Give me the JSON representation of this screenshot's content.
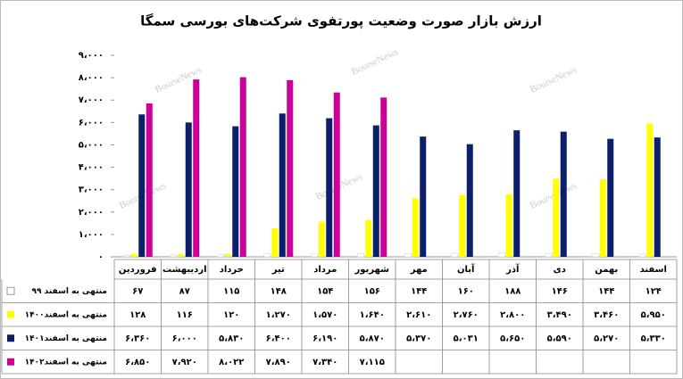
{
  "chart_data": {
    "type": "bar",
    "title": "ارزش بازار صورت وضعیت پورتفوی شرکت‌های بورسی سمگا",
    "watermark": "BourseNews",
    "categories": [
      "فروردین",
      "اردیبهشت",
      "خرداد",
      "تیر",
      "مرداد",
      "شهریور",
      "مهر",
      "آبان",
      "آذر",
      "دی",
      "بهمن",
      "اسفند"
    ],
    "series": [
      {
        "name": "منتهی به اسفند ۹۹",
        "color": "#ffffff",
        "values": [
          67,
          87,
          115,
          148,
          154,
          156,
          144,
          160,
          188,
          146,
          144,
          124
        ],
        "value_labels": [
          "۶۷",
          "۸۷",
          "۱۱۵",
          "۱۴۸",
          "۱۵۴",
          "۱۵۶",
          "۱۴۴",
          "۱۶۰",
          "۱۸۸",
          "۱۴۶",
          "۱۴۴",
          "۱۲۴"
        ]
      },
      {
        "name": "منتهی به اسفند۱۴۰۰",
        "color": "#ffff00",
        "values": [
          128,
          116,
          120,
          1270,
          1570,
          1640,
          2610,
          2760,
          2800,
          3490,
          3460,
          5950
        ],
        "value_labels": [
          "۱۲۸",
          "۱۱۶",
          "۱۲۰",
          "۱،۲۷۰",
          "۱،۵۷۰",
          "۱،۶۴۰",
          "۲،۶۱۰",
          "۲،۷۶۰",
          "۲،۸۰۰",
          "۳،۴۹۰",
          "۳،۴۶۰",
          "۵،۹۵۰"
        ]
      },
      {
        "name": "منتهی به اسفند۱۴۰۱",
        "color": "#0b1f6b",
        "values": [
          6360,
          6000,
          5830,
          6400,
          6190,
          5870,
          5370,
          5031,
          5650,
          5590,
          5270,
          5330
        ],
        "value_labels": [
          "۶،۳۶۰",
          "۶،۰۰۰",
          "۵،۸۳۰",
          "۶،۴۰۰",
          "۶،۱۹۰",
          "۵،۸۷۰",
          "۵،۳۷۰",
          "۵،۰۳۱",
          "۵،۶۵۰",
          "۵،۵۹۰",
          "۵،۲۷۰",
          "۵،۳۳۰"
        ]
      },
      {
        "name": "منتهی به اسفند۱۴۰۲",
        "color": "#cc0099",
        "values": [
          6850,
          7920,
          8022,
          7890,
          7340,
          7115,
          null,
          null,
          null,
          null,
          null,
          null
        ],
        "value_labels": [
          "۶،۸۵۰",
          "۷،۹۲۰",
          "۸،۰۲۲",
          "۷،۸۹۰",
          "۷،۳۴۰",
          "۷،۱۱۵",
          null,
          null,
          null,
          null,
          null,
          null
        ]
      }
    ],
    "ylim": [
      0,
      9000
    ],
    "yticks": [
      {
        "value": 0,
        "label": "۰"
      },
      {
        "value": 1000,
        "label": "۱،۰۰۰"
      },
      {
        "value": 2000,
        "label": "۲،۰۰۰"
      },
      {
        "value": 3000,
        "label": "۳،۰۰۰"
      },
      {
        "value": 4000,
        "label": "۴،۰۰۰"
      },
      {
        "value": 5000,
        "label": "۵،۰۰۰"
      },
      {
        "value": 6000,
        "label": "۶،۰۰۰"
      },
      {
        "value": 7000,
        "label": "۷،۰۰۰"
      },
      {
        "value": 8000,
        "label": "۸،۰۰۰"
      },
      {
        "value": 9000,
        "label": "۹،۰۰۰"
      }
    ],
    "grid": false
  }
}
